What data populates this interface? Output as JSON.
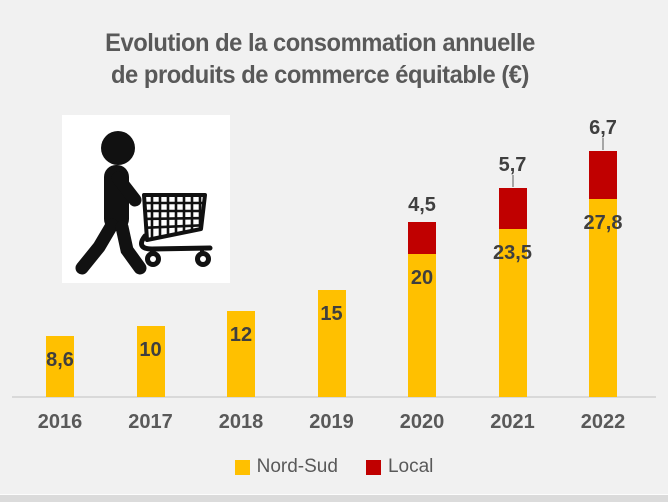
{
  "title": {
    "line1": "Evolution de la consommation annuelle",
    "line2": "de produits de commerce équitable (€)"
  },
  "chart_data": {
    "type": "bar",
    "stacked": true,
    "title": "Evolution de la consommation annuelle de produits de commerce équitable (€)",
    "categories": [
      "2016",
      "2017",
      "2018",
      "2019",
      "2020",
      "2021",
      "2022"
    ],
    "series": [
      {
        "name": "Nord-Sud",
        "color": "#FFC000",
        "values": [
          8.6,
          10,
          12,
          15,
          20,
          23.5,
          27.8
        ],
        "labels": [
          "8,6",
          "10",
          "12",
          "15",
          "20",
          "23,5",
          "27,8"
        ],
        "label_position": "inside-top"
      },
      {
        "name": "Local",
        "color": "#C00000",
        "values": [
          null,
          null,
          null,
          null,
          4.5,
          5.7,
          6.7
        ],
        "labels": [
          "",
          "",
          "",
          "",
          "4,5",
          "5,7",
          "6,7"
        ],
        "label_position": "outside-above",
        "leader_lines": [
          false,
          false,
          false,
          false,
          false,
          true,
          true
        ]
      }
    ],
    "ylim": [
      0,
      34.5
    ],
    "grid": false,
    "y_axis_visible": false,
    "decimal_separator": ",",
    "legend_position": "bottom"
  },
  "legend": {
    "items": [
      {
        "label": "Nord-Sud",
        "color": "#FFC000"
      },
      {
        "label": "Local",
        "color": "#C00000"
      }
    ]
  },
  "illustration": {
    "name": "person-pushing-shopping-cart"
  },
  "colors": {
    "background": "#F1F1F1",
    "title_text": "#595959",
    "data_label": "#3F3F3F",
    "axis_label": "#595959",
    "axis_line": "#D9D9D9",
    "leader_line": "#A6A6A6",
    "illustration_bg": "#FFFFFF",
    "illustration_fg": "#111111"
  }
}
